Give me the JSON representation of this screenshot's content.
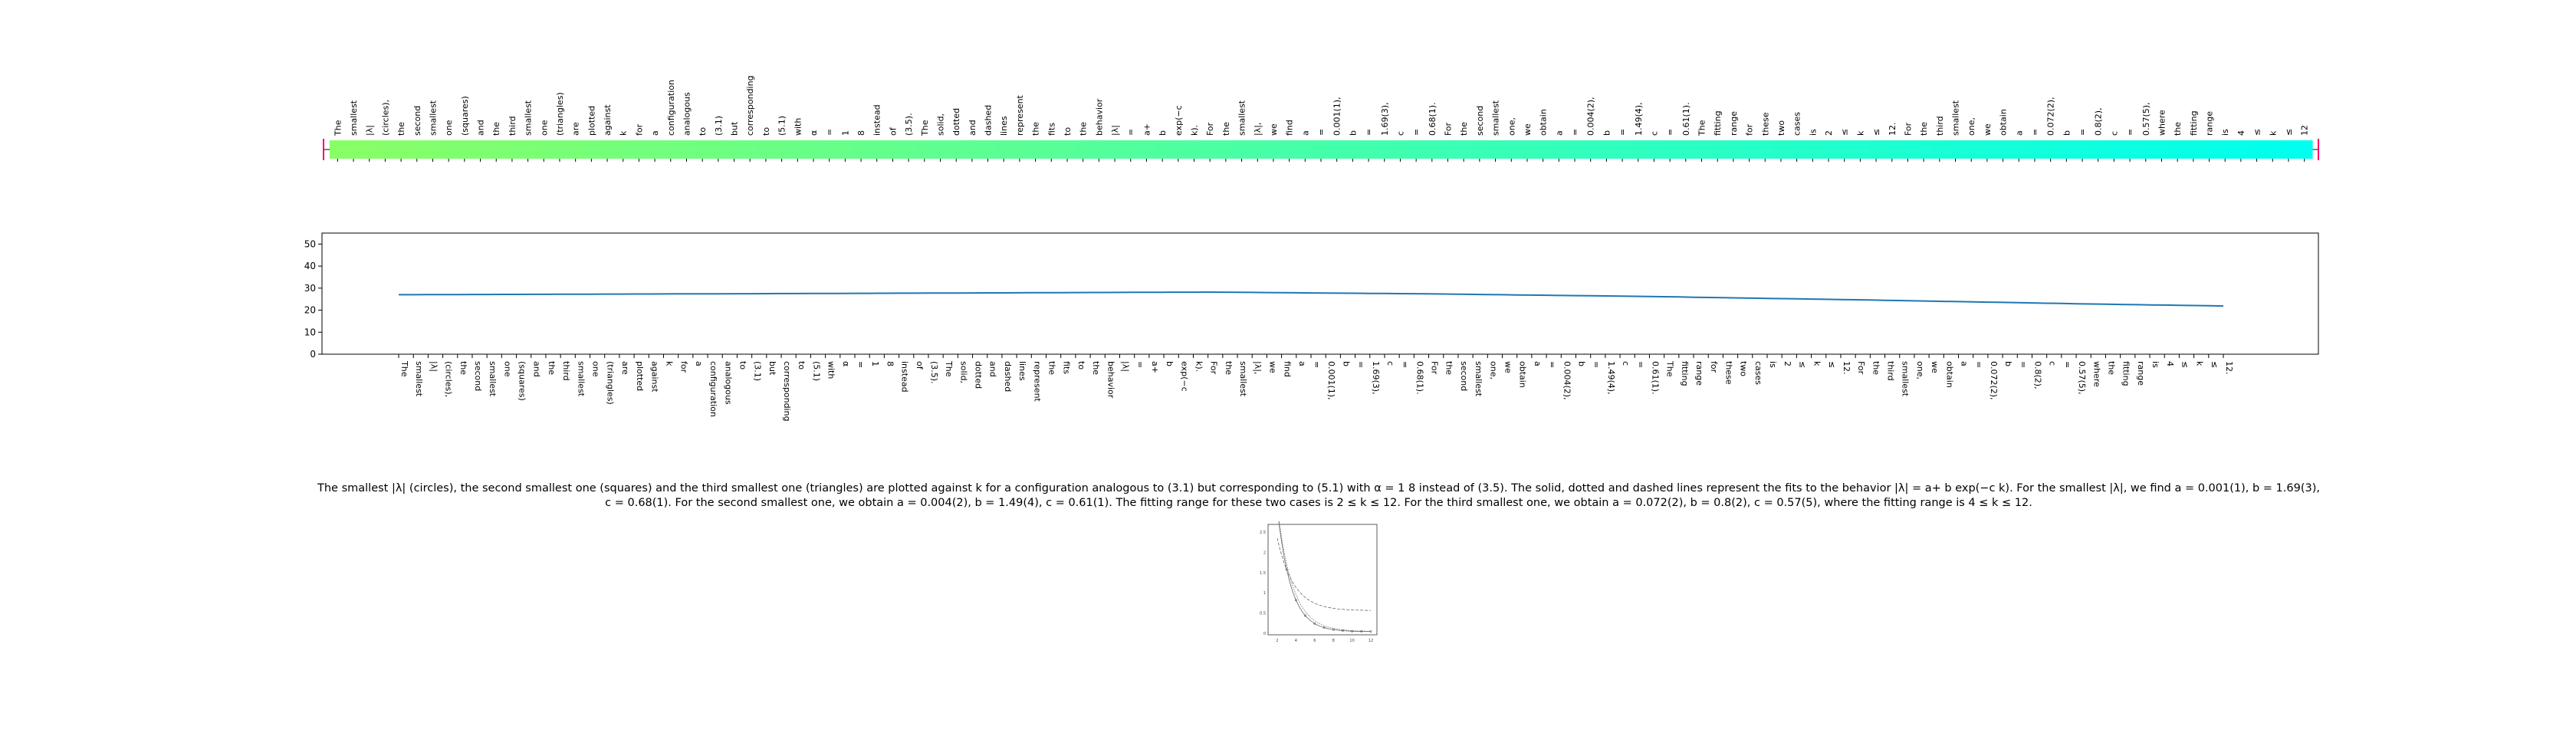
{
  "tokens": [
    "The",
    "smallest",
    "|λ|",
    "(circles),",
    "the",
    "second",
    "smallest",
    "one",
    "(squares)",
    "and",
    "the",
    "third",
    "smallest",
    "one",
    "(triangles)",
    "are",
    "plotted",
    "against",
    "k",
    "for",
    "a",
    "configuration",
    "analogous",
    "to",
    "(3.1)",
    "but",
    "corresponding",
    "to",
    "(5.1)",
    "with",
    "α",
    "=",
    "1",
    "8",
    "instead",
    "of",
    "(3.5).",
    "The",
    "solid,",
    "dotted",
    "and",
    "dashed",
    "lines",
    "represent",
    "the",
    "fits",
    "to",
    "the",
    "behavior",
    "|λ|",
    "=",
    "a+",
    "b",
    "exp(−c",
    "k).",
    "For",
    "the",
    "smallest",
    "|λ|,",
    "we",
    "find",
    "a",
    "=",
    "0.001(1),",
    "b",
    "=",
    "1.69(3),",
    "c",
    "=",
    "0.68(1).",
    "For",
    "the",
    "second",
    "smallest",
    "one,",
    "we",
    "obtain",
    "a",
    "=",
    "0.004(2),",
    "b",
    "=",
    "1.49(4),",
    "c",
    "=",
    "0.61(1).",
    "The",
    "fitting",
    "range",
    "for",
    "these",
    "two",
    "cases",
    "is",
    "2",
    "≤",
    "k",
    "≤",
    "12.",
    "For",
    "the",
    "third",
    "smallest",
    "one,",
    "we",
    "obtain",
    "a",
    "=",
    "0.072(2),",
    "b",
    "=",
    "0.8(2),",
    "c",
    "=",
    "0.57(5),",
    "where",
    "the",
    "fitting",
    "range",
    "is",
    "4",
    "≤",
    "k",
    "≤",
    "12."
  ],
  "top_strip": {
    "tokens": [
      "The",
      "smallest",
      "|λ|",
      "(circles),",
      "the",
      "second",
      "smallest",
      "one",
      "(squares)",
      "and",
      "the",
      "third",
      "smallest",
      "one",
      "(triangles)",
      "are",
      "plotted",
      "against",
      "k",
      "for",
      "a",
      "configuration",
      "analogous",
      "to",
      "(3.1)",
      "but",
      "corresponding",
      "to",
      "(5.1)",
      "with",
      "α",
      "=",
      "1",
      "8",
      "instead",
      "of",
      "(3.5).",
      "The",
      "solid,",
      "dotted",
      "and",
      "dashed",
      "lines",
      "represent",
      "the",
      "fits",
      "to",
      "the",
      "behavior",
      "|λ|",
      "=",
      "a+",
      "b",
      "exp(−c",
      "k).",
      "For",
      "the",
      "smallest",
      "|λ|,",
      "we",
      "find",
      "a",
      "=",
      "0.001(1),",
      "b",
      "=",
      "1.69(3),",
      "c",
      "=",
      "0.68(1).",
      "For",
      "the",
      "second",
      "smallest",
      "one,",
      "we",
      "obtain",
      "a",
      "=",
      "0.004(2),",
      "b",
      "=",
      "1.49(4),",
      "c",
      "=",
      "0.61(1).",
      "The",
      "fitting",
      "range",
      "for",
      "these",
      "two",
      "cases",
      "is",
      "2",
      "≤",
      "k",
      "≤",
      "12.",
      "For",
      "the",
      "third",
      "smallest",
      "one,",
      "we",
      "obtain",
      "a",
      "=",
      "0.072(2),",
      "b",
      "=",
      "0.8(2),",
      "c",
      "=",
      "0.57(5),",
      "where",
      "the",
      "fitting",
      "range",
      "is",
      "4",
      "≤",
      "k",
      "≤",
      "12"
    ],
    "gradient_start": "#88ff66",
    "gradient_end": "#00ffee",
    "accent": "#ff0066"
  },
  "chart_data": {
    "type": "line",
    "title": "",
    "xlabel": "",
    "ylabel": "",
    "ylim": [
      0,
      55
    ],
    "yticks": [
      0,
      10,
      20,
      30,
      40,
      50
    ],
    "grid": false,
    "line_color": "#1f77b4",
    "categories": [
      "The",
      "smallest",
      "|λ|",
      "(circles),",
      "the",
      "second",
      "smallest",
      "one",
      "(squares)",
      "and",
      "the",
      "third",
      "smallest",
      "one",
      "(triangles)",
      "are",
      "plotted",
      "against",
      "k",
      "for",
      "a",
      "configuration",
      "analogous",
      "to",
      "(3.1)",
      "but",
      "corresponding",
      "to",
      "(5.1)",
      "with",
      "α",
      "=",
      "1",
      "8",
      "instead",
      "of",
      "(3.5).",
      "The",
      "solid,",
      "dotted",
      "and",
      "dashed",
      "lines",
      "represent",
      "the",
      "fits",
      "to",
      "the",
      "behavior",
      "|λ|",
      "=",
      "a+",
      "b",
      "exp(−c",
      "k).",
      "For",
      "the",
      "smallest",
      "|λ|,",
      "we",
      "find",
      "a",
      "=",
      "0.001(1),",
      "b",
      "=",
      "1.69(3),",
      "c",
      "=",
      "0.68(1).",
      "For",
      "the",
      "second",
      "smallest",
      "one,",
      "we",
      "obtain",
      "a",
      "=",
      "0.004(2),",
      "b",
      "=",
      "1.49(4),",
      "c",
      "=",
      "0.61(1).",
      "The",
      "fitting",
      "range",
      "for",
      "these",
      "two",
      "cases",
      "is",
      "2",
      "≤",
      "k",
      "≤",
      "12.",
      "For",
      "the",
      "third",
      "smallest",
      "one,",
      "we",
      "obtain",
      "a",
      "=",
      "0.072(2),",
      "b",
      "=",
      "0.8(2),",
      "c",
      "=",
      "0.57(5),",
      "where",
      "the",
      "fitting",
      "range",
      "is",
      "4",
      "≤",
      "k",
      "≤",
      "12."
    ],
    "series": [
      {
        "anchors": [
          [
            0,
            27.0
          ],
          [
            30,
            27.6
          ],
          [
            55,
            28.2
          ],
          [
            70,
            27.4
          ],
          [
            85,
            26.2
          ],
          [
            100,
            24.6
          ],
          [
            115,
            22.8
          ],
          [
            135,
            20.8
          ]
        ]
      }
    ]
  },
  "caption": "The smallest |λ| (circles), the second smallest one (squares) and the third smallest one (triangles) are plotted against k for a configuration analogous to (3.1) but corresponding to (5.1) with α = 1 8 instead of (3.5). The solid, dotted and dashed lines represent the fits to the behavior |λ| = a+ b exp(−c k). For the smallest |λ|, we find a = 0.001(1), b = 1.69(3), c = 0.68(1). For the second smallest one, we obtain a = 0.004(2), b = 1.49(4), c = 0.61(1). The fitting range for these two cases is 2 ≤ k ≤ 12. For the third smallest one, we obtain a = 0.072(2), b = 0.8(2), c = 0.57(5), where the fitting range is 4 ≤ k ≤ 12.",
  "thumbnail": {
    "yticks": [
      "2.5",
      "2",
      "1.5",
      "1",
      "0.5",
      "0"
    ],
    "xticks": [
      "2",
      "4",
      "6",
      "8",
      "10",
      "12"
    ]
  }
}
